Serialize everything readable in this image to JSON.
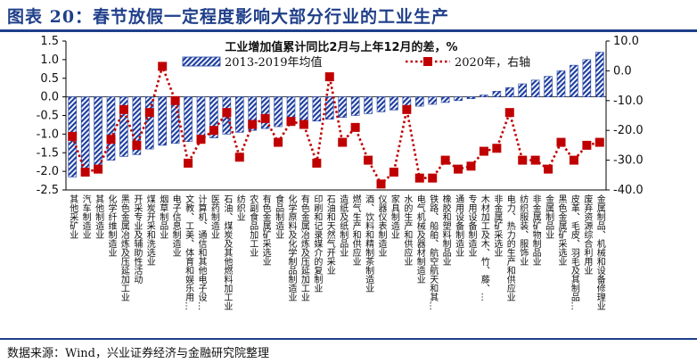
{
  "figure_title": "图表 20：春节放假一定程度影响大部分行业的工业生产",
  "source": "数据来源：Wind，兴业证券经济与金融研究院整理",
  "colors": {
    "bar": "#1f3fa0",
    "line": "#c00000",
    "title": "#1f3f8a"
  },
  "chart_data": {
    "type": "bar",
    "title": "工业增加值累计同比2月与上年12月的差，%",
    "categories": [
      "其他采矿业",
      "汽车制造业",
      "其他制造业",
      "化学纤维制造业",
      "黑色金属冶炼及压延加工业",
      "开采专业及辅助性活动",
      "煤炭开采和洗选业",
      "烟草制品业",
      "电子信息制造业",
      "文教、工美、体育和娱乐用…",
      "计算机、通信和其他电子设…",
      "医药制造业",
      "石油、煤炭及其他燃料加工业",
      "纺织业",
      "农副食品加工业",
      "有色金属矿采选业",
      "食品制造业",
      "化学原料及化学制品制造业",
      "有色金属冶炼及压延加工业",
      "印刷和记录媒介的复制业",
      "石油和天然气开采业",
      "造纸及纸制品业",
      "燃气生产和供应业",
      "酒、饮料和精制茶制造业",
      "仪器仪表制造业",
      "家具制造业",
      "水的生产和供应业",
      "电气机械及器材制造业",
      "铁路、船舶、航空航天和其…",
      "橡胶和塑料制品业",
      "通用设备制造业",
      "专用设备制造业",
      "木材加工及木、竹、藤、…",
      "非金属矿采选业",
      "电力、热力的生产和供应业",
      "纺织服装、服饰业",
      "非金属矿物制品业",
      "金属制品业",
      "黑色金属矿采选业",
      "皮革、毛皮、羽毛及其制品…",
      "废弃资源综合利用业",
      "金属制品、机械和设备修理业"
    ],
    "series": [
      {
        "name": "2013-2019年均值",
        "type": "bar",
        "axis": "left",
        "values": [
          -2.15,
          -2.0,
          -1.95,
          -1.7,
          -1.6,
          -1.55,
          -1.4,
          -1.3,
          -1.25,
          -1.2,
          -1.15,
          -1.1,
          -1.0,
          -0.95,
          -0.9,
          -0.85,
          -0.8,
          -0.75,
          -0.7,
          -0.65,
          -0.6,
          -0.55,
          -0.5,
          -0.45,
          -0.4,
          -0.35,
          -0.3,
          -0.25,
          -0.2,
          -0.15,
          -0.1,
          -0.05,
          0.05,
          0.15,
          0.25,
          0.35,
          0.45,
          0.55,
          0.7,
          0.85,
          1.0,
          1.2
        ]
      },
      {
        "name": "2020年，右轴",
        "type": "line",
        "axis": "right",
        "values": [
          -22,
          -34,
          -33,
          -23,
          -13,
          -25,
          -14,
          1.5,
          -10,
          -31,
          -23,
          -20,
          -14,
          -29,
          -18,
          -16,
          -24,
          -17,
          -18,
          -31,
          -2,
          -24,
          -19,
          -30,
          -38,
          -34,
          -13,
          -36,
          -36,
          -30,
          -33,
          -32,
          -27,
          -26,
          -14,
          -30,
          -30,
          -33,
          -24,
          -30,
          -25,
          -24
        ]
      }
    ],
    "ylim_left": [
      -2.5,
      1.5
    ],
    "yticks_left": [
      "1.5",
      "1.0",
      "0.5",
      "0.0",
      "-0.5",
      "-1.0",
      "-1.5",
      "-2.0",
      "-2.5"
    ],
    "ylim_right": [
      -40,
      10
    ],
    "yticks_right": [
      "10.0",
      "0.0",
      "-10.0",
      "-20.0",
      "-30.0",
      "-40.0"
    ],
    "legend_position": "top"
  }
}
